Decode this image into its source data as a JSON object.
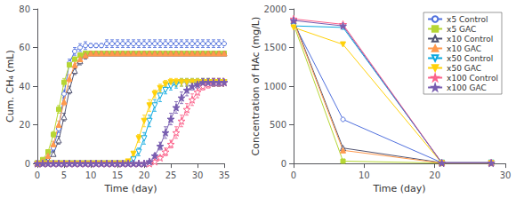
{
  "chart_data": [
    {
      "type": "line",
      "xlabel": "Time (day)",
      "ylabel": "Cum. CH₄ (mL)",
      "xlim": [
        0,
        35
      ],
      "ylim": [
        0,
        80
      ],
      "xticks": [
        0,
        5,
        10,
        15,
        20,
        25,
        30,
        35
      ],
      "yticks": [
        0,
        20,
        40,
        60,
        80
      ],
      "grid": false,
      "series": [
        {
          "marker": "circle-open",
          "x": [
            0,
            1,
            2,
            3,
            4,
            5,
            6,
            7,
            8,
            9,
            10,
            11,
            12,
            13,
            14,
            15,
            16,
            17,
            18,
            19,
            20,
            21,
            22,
            23,
            24,
            25,
            26,
            27,
            28,
            29,
            30,
            31,
            32,
            33,
            34,
            35
          ],
          "values": [
            0,
            1,
            3,
            8,
            18,
            36,
            52,
            58,
            60,
            61,
            61,
            61,
            61,
            62,
            62,
            62,
            62,
            62,
            62,
            62,
            62,
            62,
            62,
            62,
            62,
            62,
            62,
            62,
            62,
            62,
            62,
            62,
            62,
            62,
            62,
            62
          ],
          "yerr": [
            0,
            0.5,
            1,
            1.5,
            2,
            2,
            2,
            2,
            2,
            2,
            1,
            1,
            1,
            2,
            2,
            2,
            2,
            2,
            2,
            2,
            2,
            2,
            2,
            2,
            2,
            2,
            2,
            2,
            2,
            2,
            2,
            2,
            2,
            2,
            2,
            2
          ]
        },
        {
          "marker": "square-filled",
          "x": [
            0,
            1,
            2,
            3,
            4,
            5,
            6,
            7,
            8,
            9,
            10,
            11,
            12,
            13,
            14,
            15,
            16,
            17,
            18,
            19,
            20,
            21,
            22,
            23,
            24,
            25,
            26,
            27,
            28,
            29,
            30,
            31,
            32,
            33,
            34,
            35
          ],
          "values": [
            0,
            2,
            6,
            15,
            28,
            42,
            51,
            54,
            56,
            57,
            57,
            57,
            57,
            57,
            57,
            57,
            57,
            57,
            57,
            57,
            57,
            57,
            57,
            57,
            57,
            57,
            57,
            57,
            57,
            57,
            57,
            57,
            57,
            57,
            57,
            57
          ],
          "yerr": [
            0,
            0.5,
            1,
            1.5,
            2,
            2,
            1,
            1,
            1,
            1,
            1,
            1,
            1,
            1,
            1,
            1,
            1,
            1,
            1,
            1,
            1,
            1,
            1,
            1,
            1,
            1,
            1,
            1,
            1,
            1,
            1,
            1,
            1,
            1,
            1,
            1
          ]
        },
        {
          "marker": "triangle-up-open",
          "x": [
            0,
            1,
            2,
            3,
            4,
            5,
            6,
            7,
            8,
            9,
            10,
            11,
            12,
            13,
            14,
            15,
            16,
            17,
            18,
            19,
            20,
            21,
            22,
            23,
            24,
            25,
            26,
            27,
            28,
            29,
            30,
            31,
            32,
            33,
            34,
            35
          ],
          "values": [
            0,
            0.5,
            2,
            5,
            12,
            24,
            38,
            48,
            53,
            56,
            57,
            57,
            57,
            57,
            57,
            57,
            57,
            57,
            57,
            57,
            57,
            57,
            57,
            57,
            57,
            57,
            57,
            57,
            57,
            57,
            57,
            57,
            57,
            57,
            57,
            57
          ],
          "yerr": [
            0,
            0.5,
            1,
            1,
            2,
            2,
            2,
            2,
            2,
            2,
            1,
            1,
            1,
            1,
            1,
            1,
            1,
            1,
            1,
            1,
            1,
            1,
            1,
            1,
            1,
            1,
            1,
            1,
            1,
            1,
            1,
            1,
            1,
            1,
            1,
            1
          ]
        },
        {
          "marker": "triangle-up-filled",
          "x": [
            0,
            1,
            2,
            3,
            4,
            5,
            6,
            7,
            8,
            9,
            10,
            11,
            12,
            13,
            14,
            15,
            16,
            17,
            18,
            19,
            20,
            21,
            22,
            23,
            24,
            25,
            26,
            27,
            28,
            29,
            30,
            31,
            32,
            33,
            34,
            35
          ],
          "values": [
            0,
            1,
            4,
            10,
            20,
            32,
            44,
            51,
            54,
            56,
            57,
            57,
            57,
            57,
            57,
            57,
            57,
            57,
            57,
            57,
            57,
            57,
            57,
            57,
            57,
            57,
            57,
            57,
            57,
            57,
            57,
            57,
            57,
            57,
            57,
            57
          ],
          "yerr": [
            0,
            0.5,
            1,
            1.5,
            2,
            2,
            2,
            2,
            2,
            1,
            1,
            1,
            1,
            1,
            1,
            1,
            1,
            1,
            1,
            1,
            1,
            1,
            1,
            1,
            1,
            1,
            1,
            1,
            1,
            1,
            1,
            1,
            1,
            1,
            1,
            1
          ]
        },
        {
          "marker": "triangle-down-open",
          "x": [
            0,
            1,
            2,
            3,
            4,
            5,
            6,
            7,
            8,
            9,
            10,
            11,
            12,
            13,
            14,
            15,
            16,
            17,
            18,
            19,
            20,
            21,
            22,
            23,
            24,
            25,
            26,
            27,
            28,
            29,
            30,
            31,
            32,
            33,
            34,
            35
          ],
          "values": [
            0,
            0,
            0,
            0,
            0,
            0,
            0,
            0,
            0,
            0,
            0,
            0,
            0,
            0,
            0,
            0,
            0,
            0,
            2,
            6,
            13,
            22,
            30,
            35,
            38,
            40,
            41,
            42,
            42,
            42,
            42,
            42,
            42,
            42,
            42,
            42
          ],
          "yerr": [
            0,
            0,
            0,
            0,
            0,
            0,
            0,
            0,
            0,
            0,
            0,
            0,
            0,
            0,
            0,
            0,
            0,
            0,
            1,
            2,
            3,
            3,
            3,
            3,
            2,
            2,
            2,
            2,
            2,
            2,
            2,
            2,
            2,
            2,
            2,
            2
          ]
        },
        {
          "marker": "triangle-down-filled",
          "x": [
            0,
            1,
            2,
            3,
            4,
            5,
            6,
            7,
            8,
            9,
            10,
            11,
            12,
            13,
            14,
            15,
            16,
            17,
            18,
            19,
            20,
            21,
            22,
            23,
            24,
            25,
            26,
            27,
            28,
            29,
            30,
            31,
            32,
            33,
            34,
            35
          ],
          "values": [
            0,
            0,
            0,
            0,
            0,
            0,
            0,
            0,
            0,
            0,
            0,
            0,
            0,
            0,
            0,
            0,
            0,
            1,
            5,
            13,
            22,
            30,
            36,
            39,
            41,
            42,
            42,
            42,
            42,
            42,
            42,
            42,
            42,
            42,
            42,
            42
          ],
          "yerr": [
            0,
            0,
            0,
            0,
            0,
            0,
            0,
            0,
            0,
            0,
            0,
            0,
            0,
            0,
            0,
            0,
            0,
            0.5,
            1,
            2,
            3,
            3,
            2,
            2,
            2,
            2,
            2,
            2,
            2,
            2,
            2,
            2,
            2,
            2,
            2,
            2
          ]
        },
        {
          "marker": "star-open",
          "x": [
            0,
            1,
            2,
            3,
            4,
            5,
            6,
            7,
            8,
            9,
            10,
            11,
            12,
            13,
            14,
            15,
            16,
            17,
            18,
            19,
            20,
            21,
            22,
            23,
            24,
            25,
            26,
            27,
            28,
            29,
            30,
            31,
            32,
            33,
            34,
            35
          ],
          "values": [
            0,
            0,
            0,
            0,
            0,
            0,
            0,
            0,
            0,
            0,
            0,
            0,
            0,
            0,
            0,
            0,
            0,
            0,
            0,
            0,
            0,
            0,
            1,
            3,
            6,
            10,
            16,
            22,
            28,
            33,
            37,
            40,
            41,
            42,
            42,
            42
          ],
          "yerr": [
            0,
            0,
            0,
            0,
            0,
            0,
            0,
            0,
            0,
            0,
            0,
            0,
            0,
            0,
            0,
            0,
            0,
            0,
            0,
            0,
            0,
            0,
            0.5,
            1,
            2,
            2,
            3,
            3,
            3,
            3,
            3,
            2,
            2,
            2,
            2,
            2
          ]
        },
        {
          "marker": "star-filled",
          "x": [
            0,
            1,
            2,
            3,
            4,
            5,
            6,
            7,
            8,
            9,
            10,
            11,
            12,
            13,
            14,
            15,
            16,
            17,
            18,
            19,
            20,
            21,
            22,
            23,
            24,
            25,
            26,
            27,
            28,
            29,
            30,
            31,
            32,
            33,
            34,
            35
          ],
          "values": [
            0,
            0,
            0,
            0,
            0,
            0,
            0,
            0,
            0,
            0,
            0,
            0,
            0,
            0,
            0,
            0,
            0,
            0,
            0,
            0,
            0,
            1,
            4,
            9,
            16,
            23,
            29,
            34,
            38,
            40,
            41,
            42,
            42,
            42,
            42,
            42
          ],
          "yerr": [
            0,
            0,
            0,
            0,
            0,
            0,
            0,
            0,
            0,
            0,
            0,
            0,
            0,
            0,
            0,
            0,
            0,
            0,
            0,
            0,
            0,
            0.5,
            1,
            2,
            3,
            3,
            3,
            3,
            3,
            2,
            2,
            2,
            2,
            2,
            2,
            2
          ]
        }
      ]
    },
    {
      "type": "line",
      "xlabel": "Time (day)",
      "ylabel": "Concentration of HAc (mg/L)",
      "xlim": [
        0,
        30
      ],
      "ylim": [
        0,
        2000
      ],
      "xticks": [
        0,
        10,
        20,
        30
      ],
      "yticks": [
        0,
        500,
        1000,
        1500,
        2000
      ],
      "grid": false,
      "legend": "upper right",
      "series": [
        {
          "name": "x5 Control",
          "marker": "circle-open",
          "x": [
            0,
            7,
            21,
            28
          ],
          "values": [
            1820,
            570,
            10,
            10
          ]
        },
        {
          "name": "x5 GAC",
          "marker": "square-filled",
          "x": [
            0,
            7,
            21,
            28
          ],
          "values": [
            1800,
            30,
            5,
            5
          ]
        },
        {
          "name": "x10 Control",
          "marker": "triangle-up-open",
          "x": [
            0,
            7,
            21,
            28
          ],
          "values": [
            1860,
            200,
            10,
            10
          ]
        },
        {
          "name": "x10 GAC",
          "marker": "triangle-up-filled",
          "x": [
            0,
            7,
            21,
            28
          ],
          "values": [
            1840,
            170,
            5,
            5
          ]
        },
        {
          "name": "x50 Control",
          "marker": "triangle-down-open",
          "x": [
            0,
            7,
            21,
            28
          ],
          "values": [
            1780,
            1760,
            10,
            10
          ]
        },
        {
          "name": "x50 GAC",
          "marker": "triangle-down-filled",
          "x": [
            0,
            7,
            21,
            28
          ],
          "values": [
            1760,
            1540,
            5,
            5
          ]
        },
        {
          "name": "x100 Control",
          "marker": "star-open",
          "x": [
            0,
            7,
            21,
            28
          ],
          "values": [
            1870,
            1800,
            10,
            10
          ]
        },
        {
          "name": "x100 GAC",
          "marker": "star-filled",
          "x": [
            0,
            7,
            21,
            28
          ],
          "values": [
            1850,
            1780,
            5,
            5
          ]
        }
      ]
    }
  ]
}
